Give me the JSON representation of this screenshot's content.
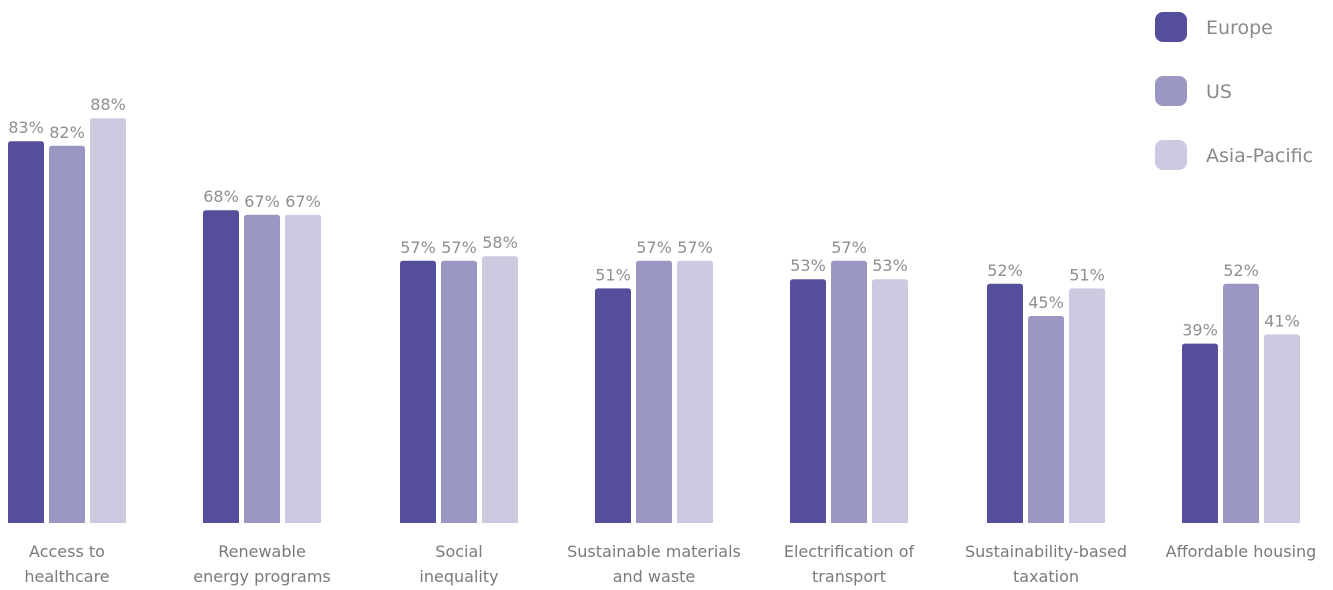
{
  "chart_data": {
    "type": "bar",
    "title": "",
    "xlabel": "",
    "ylabel": "",
    "categories": [
      [
        "Access to",
        "healthcare"
      ],
      [
        "Renewable",
        "energy programs"
      ],
      [
        "Social",
        "inequality"
      ],
      [
        "Sustainable materials",
        "and waste"
      ],
      [
        "Electrification of",
        "transport"
      ],
      [
        "Sustainability-based",
        "taxation"
      ],
      [
        "Affordable housing"
      ]
    ],
    "series": [
      {
        "name": "Europe",
        "color": "#554e9a",
        "values": [
          83,
          68,
          57,
          51,
          53,
          52,
          39
        ],
        "labels": [
          "83%",
          "68%",
          "57%",
          "51%",
          "53%",
          "52%",
          "39%"
        ]
      },
      {
        "name": "US",
        "color": "#9a98c3",
        "values": [
          82,
          67,
          57,
          57,
          57,
          45,
          52
        ],
        "labels": [
          "82%",
          "67%",
          "57%",
          "57%",
          "57%",
          "45%",
          "52%"
        ]
      },
      {
        "name": "Asia-Pacific",
        "color": "#cbcae0",
        "values": [
          88,
          67,
          58,
          57,
          53,
          51,
          41
        ],
        "labels": [
          "88%",
          "67%",
          "58%",
          "57%",
          "53%",
          "51%",
          "41%"
        ]
      }
    ],
    "ylim": [
      0,
      100
    ],
    "grid": false,
    "legend_position": "top-right"
  }
}
